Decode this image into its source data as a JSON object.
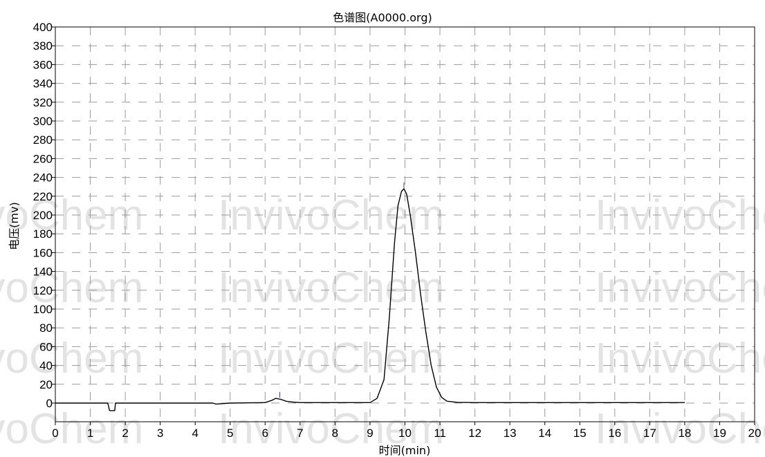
{
  "chart_data": {
    "type": "line",
    "title": "色谱图(A0000.org)",
    "xlabel": "时间(min)",
    "ylabel": "电压(mv)",
    "xlim": [
      0,
      20
    ],
    "ylim": [
      0,
      400
    ],
    "x_ticks": [
      0,
      1,
      2,
      3,
      4,
      5,
      6,
      7,
      8,
      9,
      10,
      11,
      12,
      13,
      14,
      15,
      16,
      17,
      18,
      19,
      20
    ],
    "y_ticks": [
      0,
      20,
      40,
      60,
      80,
      100,
      120,
      140,
      160,
      180,
      200,
      220,
      240,
      260,
      280,
      300,
      320,
      340,
      360,
      380,
      400
    ],
    "grid": "dashed",
    "series": [
      {
        "color": "#000000",
        "x": [
          0,
          1.5,
          1.55,
          1.6,
          1.7,
          1.72,
          1.8,
          4.5,
          4.6,
          5.0,
          6.0,
          6.2,
          6.3,
          6.45,
          6.6,
          6.8,
          7.0,
          9.0,
          9.2,
          9.4,
          9.55,
          9.7,
          9.8,
          9.9,
          9.97,
          10.05,
          10.15,
          10.3,
          10.45,
          10.6,
          10.75,
          10.9,
          11.05,
          11.2,
          11.5,
          12.0,
          18.0
        ],
        "y": [
          0,
          0,
          -8,
          -8,
          -8,
          0,
          0,
          0,
          -1,
          0,
          0.5,
          3,
          5,
          4,
          2,
          1,
          0.5,
          0.5,
          5,
          25,
          90,
          170,
          210,
          225,
          228,
          222,
          200,
          160,
          115,
          75,
          40,
          17,
          6,
          2,
          0.8,
          0.5,
          0.5
        ]
      }
    ],
    "markers": [
      {
        "color": "#3333cc",
        "x": 6.42,
        "y": 8
      },
      {
        "color": "#3333cc",
        "x": 9.97,
        "y": 231
      }
    ],
    "watermark": "InvivoChem"
  }
}
